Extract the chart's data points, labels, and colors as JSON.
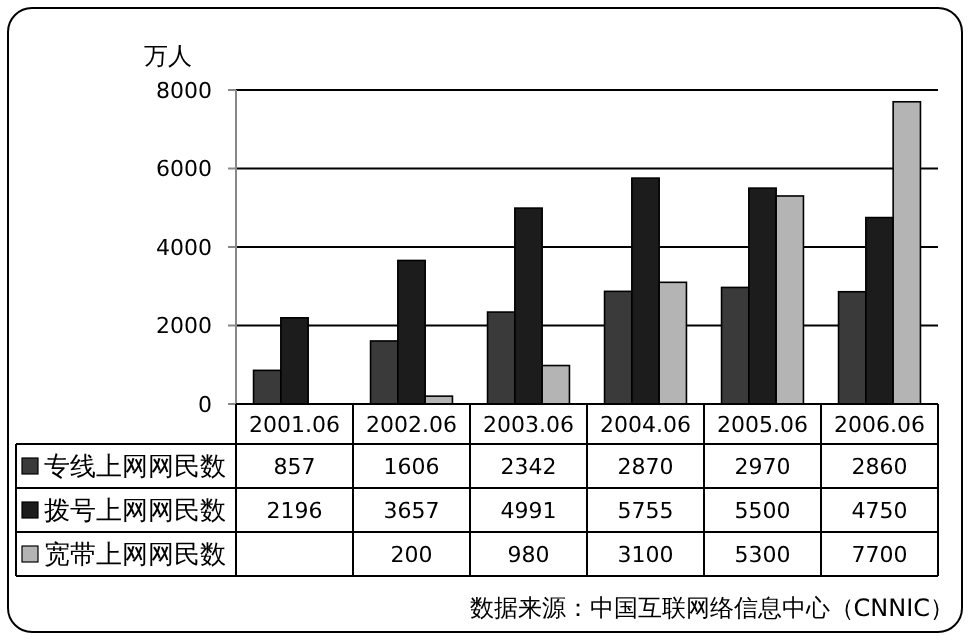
{
  "chart_data": {
    "type": "bar",
    "ylabel": "万人",
    "categories": [
      "2001.06",
      "2002.06",
      "2003.06",
      "2004.06",
      "2005.06",
      "2006.06"
    ],
    "series": [
      {
        "name": "专线上网网民数",
        "color": "#3a3a3a",
        "values": [
          857,
          1606,
          2342,
          2870,
          2970,
          2860
        ]
      },
      {
        "name": "拨号上网网民数",
        "color": "#1c1c1c",
        "values": [
          2196,
          3657,
          4991,
          5755,
          5500,
          4750
        ]
      },
      {
        "name": "宽带上网网民数",
        "color": "#b4b4b4",
        "values": [
          null,
          200,
          980,
          3100,
          5300,
          7700
        ]
      }
    ],
    "ylim": [
      0,
      8000
    ],
    "yticks": [
      0,
      2000,
      4000,
      6000,
      8000
    ],
    "grid": "y",
    "legend": "bottom",
    "data_labels": true,
    "annotations": [
      "数据来源：中国互联网络信息中心（CNNIC）"
    ]
  }
}
